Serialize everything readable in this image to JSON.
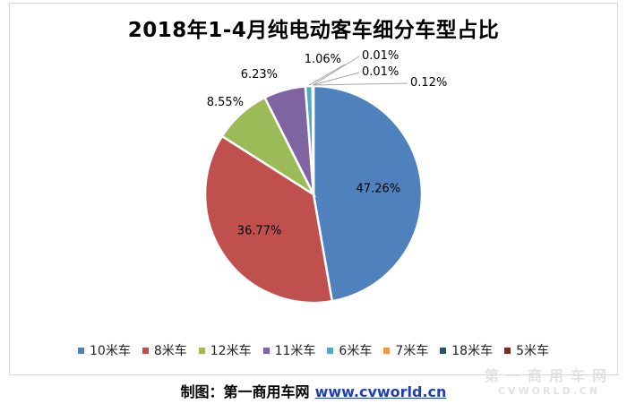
{
  "chart_data": {
    "type": "pie",
    "title": "2018年1-4月纯电动客车细分车型占比",
    "categories": [
      "10米车",
      "8米车",
      "12米车",
      "11米车",
      "6米车",
      "7米车",
      "18米车",
      "5米车"
    ],
    "values": [
      47.26,
      36.77,
      8.55,
      6.23,
      1.06,
      0.01,
      0.01,
      0.12
    ],
    "labels": [
      "47.26%",
      "36.77%",
      "8.55%",
      "6.23%",
      "1.06%",
      "0.01%",
      "0.01%",
      "0.12%"
    ],
    "colors": [
      "#4f81bd",
      "#c0504d",
      "#9bbb59",
      "#8064a2",
      "#4bacc6",
      "#f79646",
      "#2c4d75",
      "#772c2a"
    ],
    "legend_position": "bottom"
  },
  "footer": {
    "credit": "制图：第一商用车网",
    "url": "www.cvworld.cn"
  },
  "watermark": {
    "cn": "第一商用车网",
    "en": "CVWORLD.CN"
  }
}
